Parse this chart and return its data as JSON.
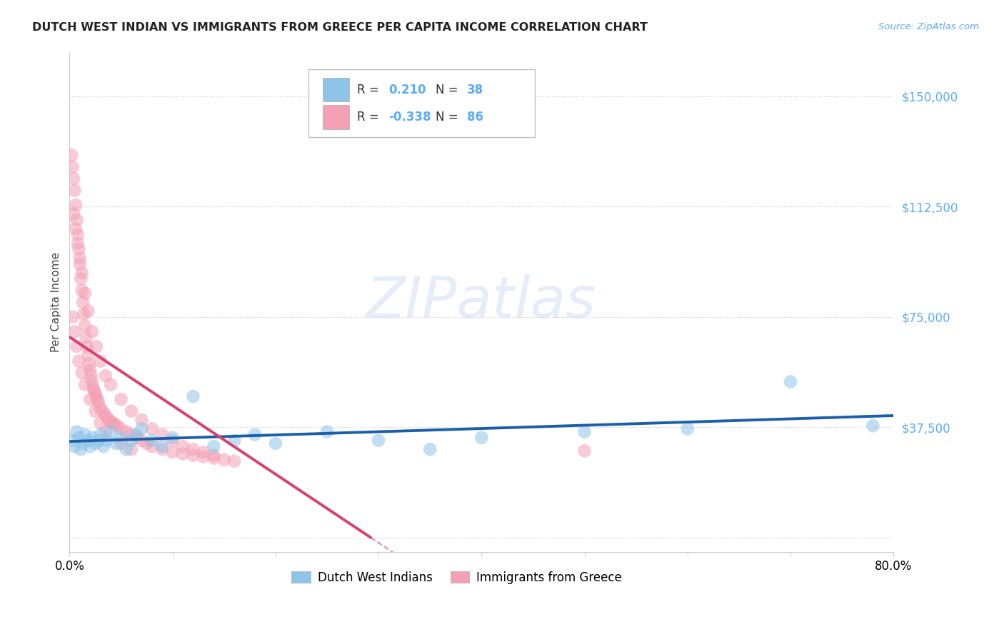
{
  "title": "DUTCH WEST INDIAN VS IMMIGRANTS FROM GREECE PER CAPITA INCOME CORRELATION CHART",
  "source": "Source: ZipAtlas.com",
  "ylabel": "Per Capita Income",
  "xlim": [
    0.0,
    0.8
  ],
  "ylim": [
    -5000,
    165000
  ],
  "yticks": [
    0,
    37500,
    75000,
    112500,
    150000
  ],
  "ytick_labels": [
    "",
    "$37,500",
    "$75,000",
    "$112,500",
    "$150,000"
  ],
  "xticks": [
    0.0,
    0.1,
    0.2,
    0.3,
    0.4,
    0.5,
    0.6,
    0.7,
    0.8
  ],
  "xtick_labels": [
    "0.0%",
    "",
    "",
    "",
    "",
    "",
    "",
    "",
    "80.0%"
  ],
  "legend_label1": "Dutch West Indians",
  "legend_label2": "Immigrants from Greece",
  "R1": "0.210",
  "N1": "38",
  "R2": "-0.338",
  "N2": "86",
  "color_blue": "#8ec4e8",
  "color_pink": "#f4a0b5",
  "line_blue": "#1b5faa",
  "line_pink": "#d94070",
  "line_pink_dash": "#d94070",
  "background_color": "#ffffff",
  "blue_x": [
    0.003,
    0.005,
    0.007,
    0.009,
    0.011,
    0.013,
    0.015,
    0.018,
    0.02,
    0.022,
    0.025,
    0.028,
    0.03,
    0.033,
    0.036,
    0.04,
    0.045,
    0.05,
    0.055,
    0.06,
    0.065,
    0.07,
    0.08,
    0.09,
    0.1,
    0.12,
    0.14,
    0.16,
    0.18,
    0.2,
    0.25,
    0.3,
    0.35,
    0.4,
    0.5,
    0.6,
    0.7,
    0.78
  ],
  "blue_y": [
    33000,
    31000,
    36000,
    34000,
    30000,
    32000,
    35000,
    33000,
    31000,
    34000,
    32000,
    33000,
    35000,
    31000,
    33000,
    36000,
    32000,
    34000,
    30000,
    33000,
    35000,
    37000,
    33000,
    31000,
    34000,
    48000,
    31000,
    33000,
    35000,
    32000,
    36000,
    33000,
    30000,
    34000,
    36000,
    37000,
    53000,
    38000
  ],
  "pink_x": [
    0.002,
    0.003,
    0.004,
    0.005,
    0.006,
    0.007,
    0.008,
    0.009,
    0.01,
    0.011,
    0.012,
    0.013,
    0.014,
    0.015,
    0.016,
    0.017,
    0.018,
    0.019,
    0.02,
    0.021,
    0.022,
    0.023,
    0.024,
    0.025,
    0.026,
    0.027,
    0.028,
    0.03,
    0.032,
    0.034,
    0.036,
    0.038,
    0.04,
    0.042,
    0.044,
    0.046,
    0.05,
    0.055,
    0.06,
    0.065,
    0.07,
    0.075,
    0.08,
    0.09,
    0.1,
    0.11,
    0.12,
    0.13,
    0.14,
    0.15,
    0.004,
    0.006,
    0.008,
    0.01,
    0.012,
    0.015,
    0.018,
    0.022,
    0.026,
    0.03,
    0.035,
    0.04,
    0.05,
    0.06,
    0.07,
    0.08,
    0.09,
    0.1,
    0.11,
    0.12,
    0.13,
    0.14,
    0.003,
    0.005,
    0.007,
    0.009,
    0.012,
    0.015,
    0.02,
    0.025,
    0.03,
    0.035,
    0.05,
    0.06,
    0.5,
    0.16
  ],
  "pink_y": [
    130000,
    126000,
    122000,
    118000,
    113000,
    108000,
    103000,
    98000,
    93000,
    88000,
    84000,
    80000,
    76000,
    72000,
    68000,
    65000,
    62000,
    59000,
    57000,
    55000,
    53000,
    51000,
    50000,
    49000,
    48000,
    47000,
    46000,
    44000,
    43000,
    42000,
    41000,
    40000,
    39500,
    39000,
    38500,
    38000,
    37000,
    36000,
    35000,
    34000,
    33000,
    32000,
    31000,
    30000,
    29000,
    28500,
    28000,
    27500,
    27000,
    26500,
    110000,
    105000,
    100000,
    95000,
    90000,
    83000,
    77000,
    70000,
    65000,
    60000,
    55000,
    52000,
    47000,
    43000,
    40000,
    37000,
    35000,
    33000,
    31000,
    30000,
    29000,
    28000,
    75000,
    70000,
    65000,
    60000,
    56000,
    52000,
    47000,
    43000,
    39000,
    36000,
    32000,
    30000,
    29500,
    26000
  ]
}
